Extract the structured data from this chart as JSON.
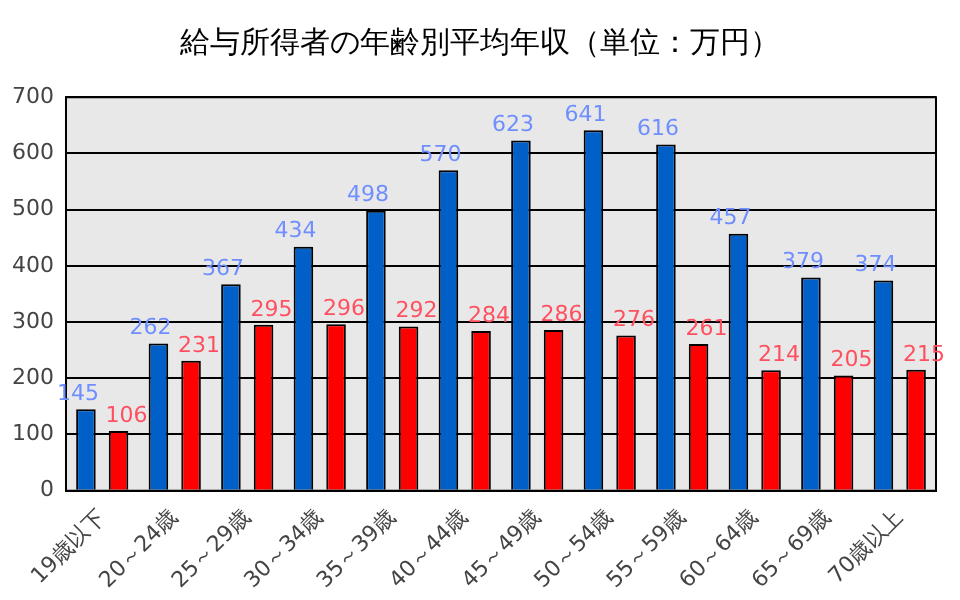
{
  "chart_data": {
    "type": "bar",
    "title": "給与所得者の年齢別平均年収（単位：万円）",
    "categories": [
      "19歳以下",
      "20～24歳",
      "25～29歳",
      "30～34歳",
      "35～39歳",
      "40～44歳",
      "45～49歳",
      "50～54歳",
      "55～59歳",
      "60～64歳",
      "65～69歳",
      "70歳以上"
    ],
    "series": [
      {
        "color": "#0060c8",
        "values": [
          145,
          262,
          367,
          434,
          498,
          570,
          623,
          641,
          616,
          457,
          379,
          374
        ]
      },
      {
        "color": "#ff0000",
        "values": [
          106,
          231,
          295,
          296,
          292,
          284,
          286,
          276,
          261,
          214,
          205,
          215
        ]
      }
    ],
    "ylim": [
      0,
      700
    ],
    "yticks": [
      0,
      100,
      200,
      300,
      400,
      500,
      600,
      700
    ],
    "grid": "y",
    "legend": false,
    "data_labels": true
  }
}
